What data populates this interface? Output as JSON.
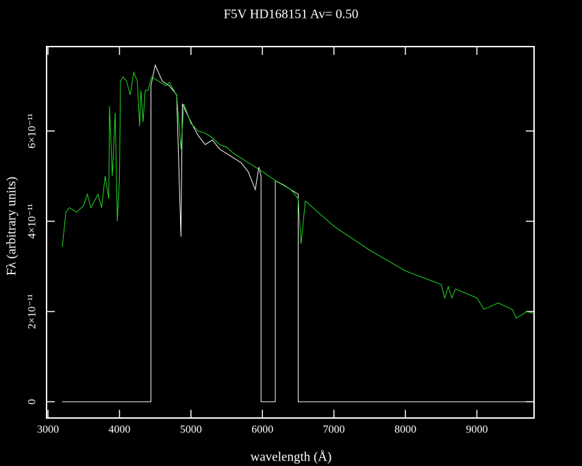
{
  "chart_data": {
    "type": "line",
    "title": "F5V  HD168151       Av=  0.50",
    "x_label": "wavelength (Å)",
    "y_label": "Fλ (arbitrary units)",
    "xlim": [
      2980,
      9800
    ],
    "ylim": [
      -3.6e-12,
      7.87e-11
    ],
    "xticks": [
      3000,
      4000,
      5000,
      6000,
      7000,
      8000,
      9000
    ],
    "yticks": [
      0,
      {
        "value": 2e-11,
        "label": "2×10⁻¹¹"
      },
      {
        "value": 4e-11,
        "label": "4×10⁻¹¹"
      },
      {
        "value": 6e-11,
        "label": "6×10⁻¹¹"
      }
    ],
    "grid": false,
    "series": [
      {
        "color": "#ffffff",
        "x": [
          3200,
          4440,
          4440,
          4500,
          4600,
          4700,
          4800,
          4860,
          4880,
          5000,
          5100,
          5200,
          5300,
          5400,
          5500,
          5600,
          5700,
          5800,
          5900,
          5950,
          5980,
          5980,
          6180,
          6180,
          6300,
          6400,
          6500,
          6500,
          9780
        ],
        "values": [
          0,
          0,
          7e-11,
          7.46e-11,
          7.1e-11,
          7e-11,
          6.8e-11,
          3.66e-11,
          6.6e-11,
          6.2e-11,
          5.9e-11,
          5.7e-11,
          5.8e-11,
          5.6e-11,
          5.5e-11,
          5.4e-11,
          5.3e-11,
          5.1e-11,
          4.7e-11,
          5.2e-11,
          5e-11,
          0,
          0,
          4.9e-11,
          4.8e-11,
          4.7e-11,
          4.6e-11,
          0,
          0
        ]
      },
      {
        "color": "#22dd22",
        "x": [
          3200,
          3250,
          3300,
          3400,
          3500,
          3550,
          3600,
          3700,
          3750,
          3800,
          3850,
          3861,
          3900,
          3940,
          3970,
          4000,
          4014,
          4050,
          4100,
          4150,
          4200,
          4250,
          4282,
          4300,
          4330,
          4360,
          4400,
          4450,
          4550,
          4650,
          4700,
          4800,
          4861,
          4900,
          5000,
          5100,
          5200,
          5300,
          5400,
          5500,
          5600,
          5700,
          5800,
          5900,
          6000,
          6200,
          6400,
          6500,
          6540,
          6600,
          7000,
          7500,
          8000,
          8500,
          8550,
          8600,
          8650,
          8700,
          9000,
          9100,
          9300,
          9500,
          9550,
          9700,
          9800
        ],
        "values": [
          3.43e-11,
          4.2e-11,
          4.3e-11,
          4.2e-11,
          4.35e-11,
          4.6e-11,
          4.3e-11,
          4.6e-11,
          4.3e-11,
          5e-11,
          4.5e-11,
          6.55e-11,
          5e-11,
          6.4e-11,
          4e-11,
          4.95e-11,
          7.1e-11,
          7.2e-11,
          7.1e-11,
          6.8e-11,
          7.3e-11,
          7.1e-11,
          6.1e-11,
          6.9e-11,
          6.2e-11,
          6.9e-11,
          6.9e-11,
          7.2e-11,
          7.1e-11,
          7e-11,
          7.08e-11,
          6.78e-11,
          5.6e-11,
          6.6e-11,
          6.17e-11,
          6e-11,
          5.95e-11,
          5.85e-11,
          5.7e-11,
          5.64e-11,
          5.5e-11,
          5.4e-11,
          5.3e-11,
          5.2e-11,
          5.1e-11,
          4.88e-11,
          4.7e-11,
          4.5e-11,
          3.5e-11,
          4.45e-11,
          3.89e-11,
          3.36e-11,
          2.9e-11,
          2.6e-11,
          2.3e-11,
          2.55e-11,
          2.3e-11,
          2.5e-11,
          2.3e-11,
          2.05e-11,
          2.19e-11,
          2.04e-11,
          1.85e-11,
          2e-11,
          1.95e-11
        ]
      }
    ]
  }
}
